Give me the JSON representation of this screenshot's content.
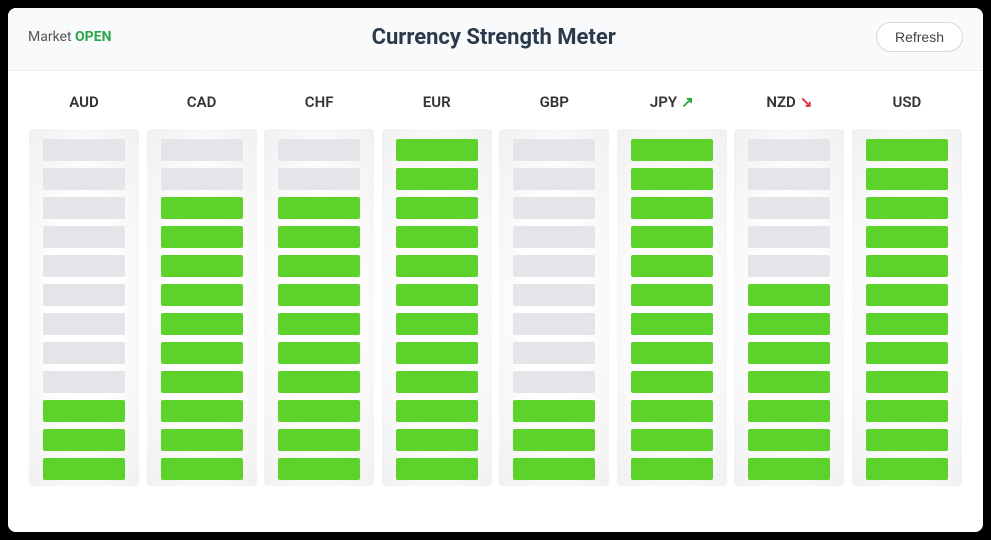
{
  "header": {
    "market_label": "Market",
    "market_status": "OPEN",
    "title": "Currency Strength Meter",
    "refresh_label": "Refresh"
  },
  "chart": {
    "segment_count": 12,
    "colors": {
      "active": "#5dd22b",
      "inactive": "#e3e5e8",
      "arrow_up": "#28a745",
      "arrow_down": "#dc3545",
      "status_open": "#28a745",
      "title_text": "#2b3a4a"
    },
    "currencies": [
      {
        "code": "AUD",
        "strength": 3,
        "trend": "none"
      },
      {
        "code": "CAD",
        "strength": 10,
        "trend": "none"
      },
      {
        "code": "CHF",
        "strength": 10,
        "trend": "none"
      },
      {
        "code": "EUR",
        "strength": 12,
        "trend": "none"
      },
      {
        "code": "GBP",
        "strength": 3,
        "trend": "none"
      },
      {
        "code": "JPY",
        "strength": 12,
        "trend": "up"
      },
      {
        "code": "NZD",
        "strength": 7,
        "trend": "down"
      },
      {
        "code": "USD",
        "strength": 12,
        "trend": "none"
      }
    ]
  }
}
